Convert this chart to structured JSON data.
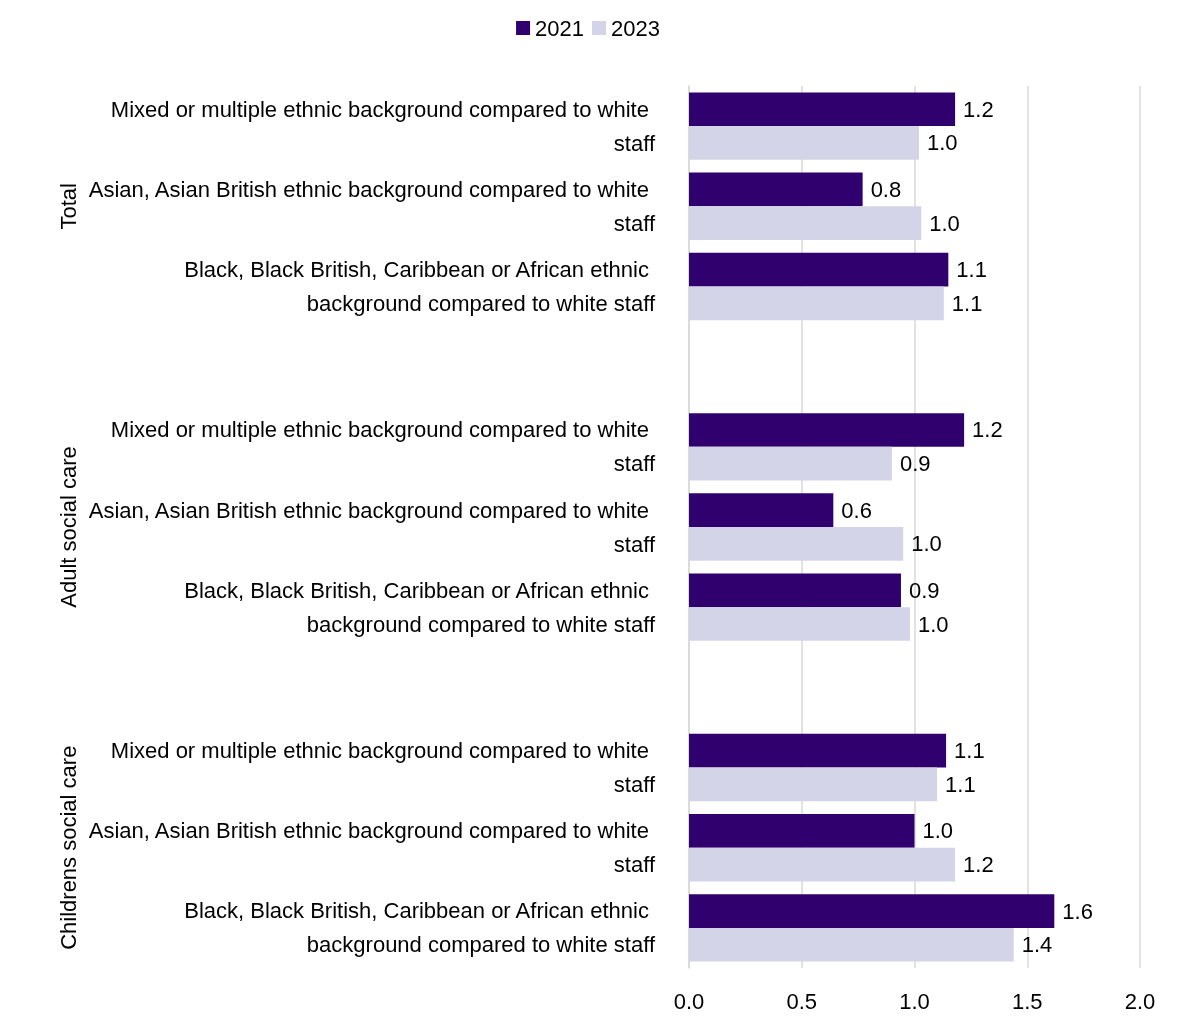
{
  "chart_data": {
    "type": "bar",
    "orientation": "horizontal",
    "categories": [
      "Mixed or multiple ethnic background compared to white staff",
      "Asian, Asian British ethnic background compared to white staff",
      "Black, Black British, Caribbean or African ethnic background compared to white staff",
      null,
      "Mixed or multiple ethnic background compared to white staff",
      "Asian, Asian British ethnic background compared to white staff",
      "Black, Black British, Caribbean or African ethnic background compared to white staff",
      null,
      "Mixed or multiple ethnic background compared to white staff",
      "Asian, Asian British ethnic background compared to white staff",
      "Black, Black British, Caribbean or African ethnic background compared to white staff"
    ],
    "series": [
      {
        "name": "2021",
        "color": "#31006f",
        "values": [
          1.18,
          0.77,
          1.15,
          null,
          1.22,
          0.64,
          0.94,
          null,
          1.14,
          1.0,
          1.62
        ],
        "value_labels": [
          "1.2",
          "0.8",
          "1.1",
          null,
          "1.2",
          "0.6",
          "0.9",
          null,
          "1.1",
          "1.0",
          "1.6"
        ]
      },
      {
        "name": "2023",
        "color": "#d4d4e8",
        "values": [
          1.02,
          1.03,
          1.13,
          null,
          0.9,
          0.95,
          0.98,
          null,
          1.1,
          1.18,
          1.44
        ],
        "value_labels": [
          "1.0",
          "1.0",
          "1.1",
          null,
          "0.9",
          "1.0",
          "1.0",
          null,
          "1.1",
          "1.2",
          "1.4"
        ]
      }
    ],
    "annotations": [
      "Total",
      "Adult social care",
      "Childrens social care"
    ],
    "xlim": [
      0,
      2
    ],
    "xticks": [
      {
        "value": 0,
        "label": "0.0"
      },
      {
        "value": 0.5,
        "label": "0.5"
      },
      {
        "value": 1,
        "label": "1.0"
      },
      {
        "value": 1.5,
        "label": "1.5"
      },
      {
        "value": 2,
        "label": "2.0"
      }
    ],
    "grid": "x",
    "legend": "top"
  }
}
